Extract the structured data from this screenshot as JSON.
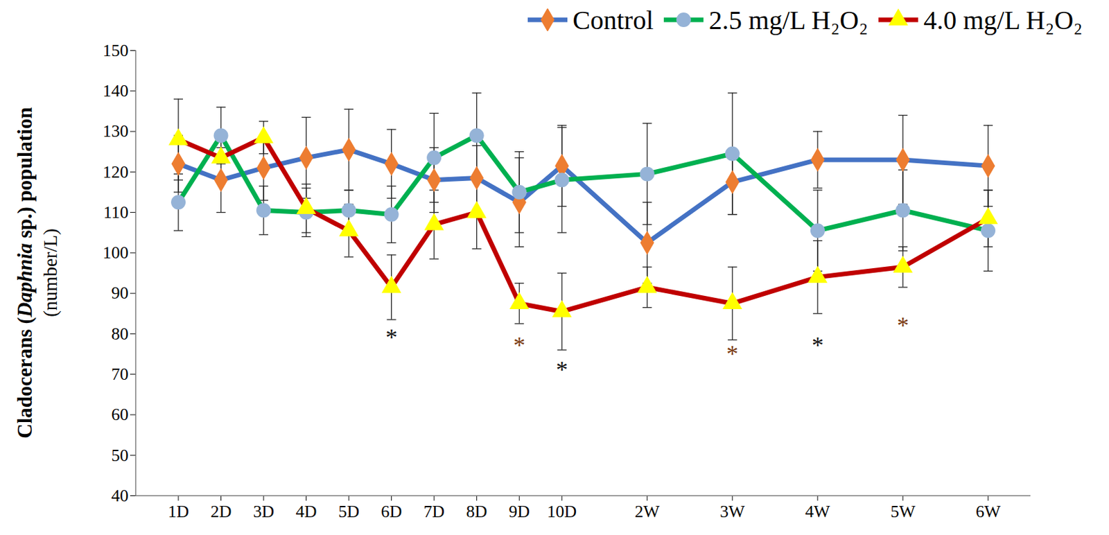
{
  "chart_data": {
    "type": "line",
    "y_label": "Cladocerans (Daphnia sp.) population (number/L)",
    "x": [
      1,
      2,
      3,
      4,
      5,
      6,
      7,
      8,
      9,
      10,
      12,
      14,
      16,
      18,
      20
    ],
    "xlim": [
      0,
      21
    ],
    "xticks": [
      {
        "value": 1,
        "label": "1D"
      },
      {
        "value": 2,
        "label": "2D"
      },
      {
        "value": 3,
        "label": "3D"
      },
      {
        "value": 4,
        "label": "4D"
      },
      {
        "value": 5,
        "label": "5D"
      },
      {
        "value": 6,
        "label": "6D"
      },
      {
        "value": 7,
        "label": "7D"
      },
      {
        "value": 8,
        "label": "8D"
      },
      {
        "value": 9,
        "label": "9D"
      },
      {
        "value": 10,
        "label": "10D"
      },
      {
        "value": 12,
        "label": "2W"
      },
      {
        "value": 14,
        "label": "3W"
      },
      {
        "value": 16,
        "label": "4W"
      },
      {
        "value": 18,
        "label": "5W"
      },
      {
        "value": 20,
        "label": "6W"
      }
    ],
    "ylim": [
      40,
      150
    ],
    "yticks": [
      40,
      50,
      60,
      70,
      80,
      90,
      100,
      110,
      120,
      130,
      140,
      150
    ],
    "grid": false,
    "legend": "top",
    "series": [
      {
        "name": "Control",
        "color": "#4472C4",
        "marker": "diamond",
        "line_style": "solid",
        "values": [
          122,
          118,
          121,
          123.5,
          125.5,
          122,
          118,
          118.5,
          112.5,
          121.5,
          102.5,
          117.5,
          123,
          123,
          121.5
        ],
        "errors": [
          7,
          8,
          8,
          10,
          10,
          8.5,
          8,
          8,
          11,
          10,
          10,
          8,
          7,
          11,
          10
        ]
      },
      {
        "name": "2.5 mg/L H₂O₂",
        "color": "#00B050",
        "marker": "circle",
        "line_style": "solid",
        "values": [
          112.5,
          129,
          110.5,
          110,
          110.5,
          109.5,
          123.5,
          129,
          115,
          118,
          119.5,
          124.5,
          105.5,
          110.5,
          105.5
        ],
        "errors": [
          7,
          7,
          6,
          6,
          5,
          7,
          11,
          10.5,
          10,
          13,
          12.5,
          15,
          10,
          10,
          10
        ]
      },
      {
        "name": "4.0 mg/L H₂O₂",
        "color": "#C00000",
        "marker": "triangle",
        "line_style": "solid",
        "values": [
          128,
          123.5,
          128.5,
          111,
          105.5,
          91.5,
          107,
          110,
          87.5,
          85.5,
          91.5,
          87.5,
          94,
          96.5,
          108.5
        ],
        "errors": [
          10,
          5,
          4,
          6,
          6.5,
          8,
          8.5,
          9,
          5,
          9.5,
          5,
          9,
          9,
          5,
          7
        ]
      }
    ],
    "annotations": [
      {
        "x": 6,
        "y": 79,
        "text": "*"
      },
      {
        "x": 9,
        "y": 77,
        "text": "*"
      },
      {
        "x": 10,
        "y": 71,
        "text": "*"
      },
      {
        "x": 14,
        "y": 75,
        "text": "*"
      },
      {
        "x": 16,
        "y": 77,
        "text": "*"
      },
      {
        "x": 18,
        "y": 82,
        "text": "*"
      }
    ]
  }
}
